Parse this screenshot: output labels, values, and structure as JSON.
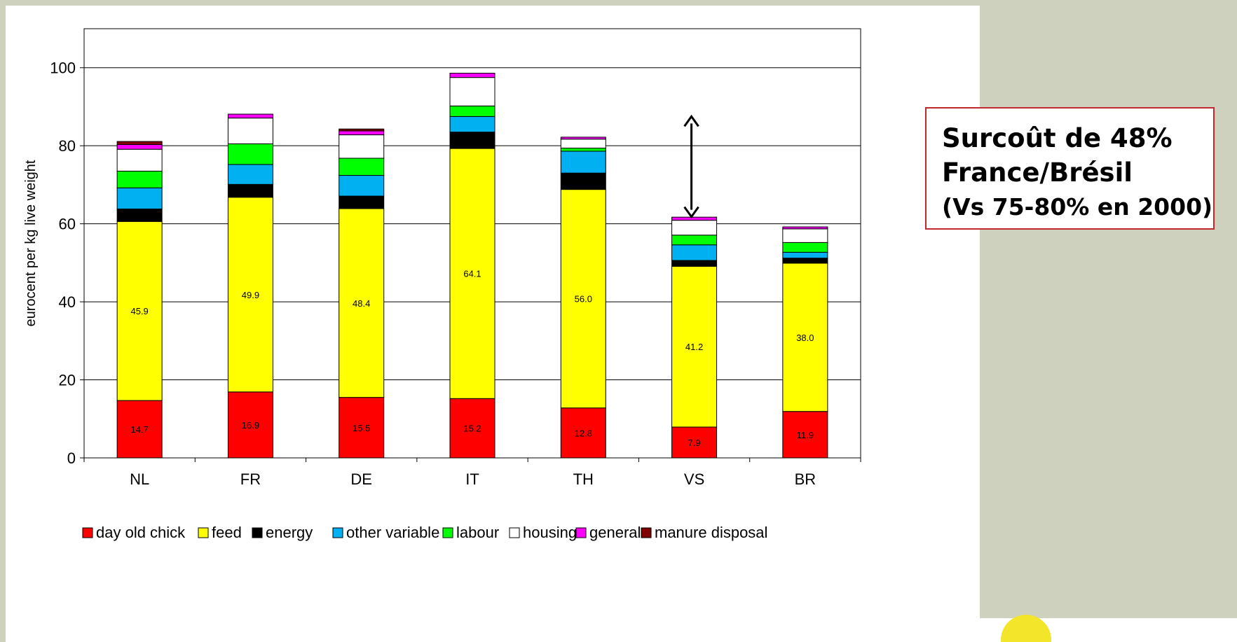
{
  "chart_data": {
    "type": "bar",
    "stacked": true,
    "categories": [
      "NL",
      "FR",
      "DE",
      "IT",
      "TH",
      "VS",
      "BR"
    ],
    "ylabel": "eurocent per kg live weight",
    "ylim": [
      0,
      110
    ],
    "yticks": [
      0,
      20,
      40,
      60,
      80,
      100
    ],
    "grid": true,
    "legend_position": "bottom",
    "series": [
      {
        "name": "day old chick",
        "color": "#ff0000",
        "values": [
          14.7,
          16.9,
          15.5,
          15.2,
          12.8,
          7.9,
          11.9
        ],
        "labels": [
          "14.7",
          "16.9",
          "15.5",
          "15.2",
          "12.8",
          "7.9",
          "11.9"
        ]
      },
      {
        "name": "feed",
        "color": "#ffff00",
        "values": [
          45.9,
          49.9,
          48.4,
          64.1,
          56.0,
          41.2,
          38.0
        ],
        "labels": [
          "45.9",
          "49.9",
          "48.4",
          "64.1",
          "56.0",
          "41.2",
          "38.0"
        ]
      },
      {
        "name": "energy",
        "color": "#000000",
        "values": [
          3.2,
          3.3,
          3.2,
          4.2,
          4.2,
          1.5,
          1.3
        ]
      },
      {
        "name": "other variable",
        "color": "#00b0f0",
        "values": [
          5.4,
          5.1,
          5.3,
          4.0,
          5.6,
          4.0,
          1.5
        ]
      },
      {
        "name": "labour",
        "color": "#00ff00",
        "values": [
          4.3,
          5.3,
          4.4,
          2.7,
          0.8,
          2.5,
          2.5
        ]
      },
      {
        "name": "housing",
        "color": "#ffffff",
        "values": [
          5.6,
          6.6,
          6.0,
          7.3,
          2.3,
          3.8,
          3.5
        ]
      },
      {
        "name": "general",
        "color": "#ff00ff",
        "values": [
          1.2,
          1.0,
          1.0,
          1.1,
          0.5,
          0.8,
          0.5
        ]
      },
      {
        "name": "manure disposal",
        "color": "#800000",
        "values": [
          0.8,
          0.0,
          0.5,
          0.0,
          0.0,
          0.0,
          0.0
        ]
      }
    ]
  },
  "annotation": {
    "arrow_category": "VS",
    "arrow_from": 61.8,
    "arrow_to": 87.5
  },
  "callout": {
    "line1": "Surcoût de 48%",
    "line2": "France/Brésil",
    "line3": "(Vs 75-80% en 2000)",
    "border_color": "#c0282d"
  }
}
